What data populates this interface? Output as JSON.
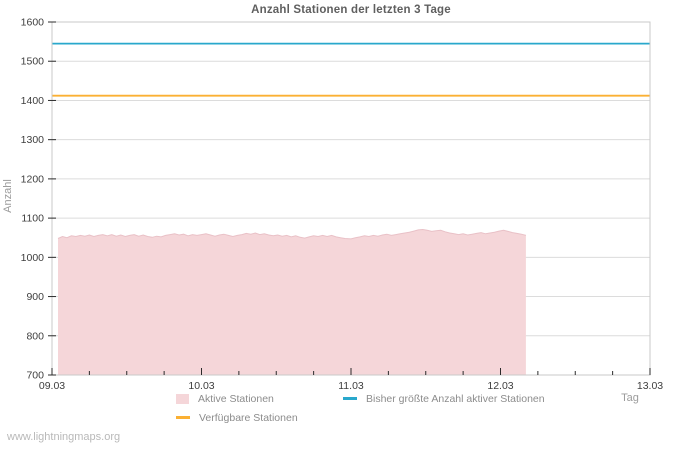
{
  "watermark": "www.lightningmaps.org",
  "chart_data": {
    "type": "area",
    "title": "Anzahl Stationen der letzten 3 Tage",
    "xlabel": "Tag",
    "ylabel": "Anzahl",
    "xlim": [
      0,
      4
    ],
    "ylim": [
      700,
      1600
    ],
    "grid": "horizontal",
    "legend_position": "bottom",
    "x_tick_labels": [
      "09.03",
      "10.03",
      "11.03",
      "12.03",
      "13.03"
    ],
    "x_tick_positions": [
      0,
      1,
      2,
      3,
      4
    ],
    "x_minor_tick_step": 0.25,
    "y_ticks": [
      700,
      800,
      900,
      1000,
      1100,
      1200,
      1300,
      1400,
      1500,
      1600
    ],
    "colors": {
      "grid": "#dcdcdc",
      "border": "#c9c9c9",
      "tick": "#2b2b2b",
      "tick_label": "#3e3e3e",
      "area_fill": "#f5d6d9",
      "area_edge": "#e9c1c7",
      "max_line": "#29a8cc",
      "available_line": "#fbb033"
    },
    "series": [
      {
        "name": "Aktive Stationen",
        "type": "area",
        "color": "#f5d6d9",
        "edge_color": "#e9c1c7",
        "points": [
          [
            0.04,
            1048
          ],
          [
            0.07,
            1053
          ],
          [
            0.1,
            1050
          ],
          [
            0.13,
            1055
          ],
          [
            0.16,
            1053
          ],
          [
            0.19,
            1056
          ],
          [
            0.22,
            1054
          ],
          [
            0.25,
            1057
          ],
          [
            0.28,
            1053
          ],
          [
            0.31,
            1056
          ],
          [
            0.34,
            1058
          ],
          [
            0.37,
            1055
          ],
          [
            0.4,
            1058
          ],
          [
            0.43,
            1054
          ],
          [
            0.46,
            1057
          ],
          [
            0.49,
            1053
          ],
          [
            0.52,
            1056
          ],
          [
            0.55,
            1058
          ],
          [
            0.58,
            1054
          ],
          [
            0.61,
            1057
          ],
          [
            0.64,
            1053
          ],
          [
            0.67,
            1051
          ],
          [
            0.7,
            1054
          ],
          [
            0.73,
            1052
          ],
          [
            0.76,
            1056
          ],
          [
            0.79,
            1058
          ],
          [
            0.82,
            1060
          ],
          [
            0.85,
            1057
          ],
          [
            0.88,
            1059
          ],
          [
            0.91,
            1055
          ],
          [
            0.94,
            1058
          ],
          [
            0.97,
            1056
          ],
          [
            1.0,
            1058
          ],
          [
            1.03,
            1060
          ],
          [
            1.06,
            1057
          ],
          [
            1.09,
            1054
          ],
          [
            1.12,
            1057
          ],
          [
            1.15,
            1059
          ],
          [
            1.18,
            1056
          ],
          [
            1.21,
            1053
          ],
          [
            1.24,
            1056
          ],
          [
            1.27,
            1058
          ],
          [
            1.3,
            1061
          ],
          [
            1.33,
            1059
          ],
          [
            1.36,
            1062
          ],
          [
            1.39,
            1058
          ],
          [
            1.42,
            1060
          ],
          [
            1.45,
            1057
          ],
          [
            1.48,
            1055
          ],
          [
            1.51,
            1057
          ],
          [
            1.54,
            1054
          ],
          [
            1.57,
            1056
          ],
          [
            1.6,
            1052
          ],
          [
            1.63,
            1055
          ],
          [
            1.66,
            1051
          ],
          [
            1.69,
            1049
          ],
          [
            1.72,
            1052
          ],
          [
            1.75,
            1055
          ],
          [
            1.78,
            1053
          ],
          [
            1.81,
            1056
          ],
          [
            1.84,
            1053
          ],
          [
            1.87,
            1056
          ],
          [
            1.9,
            1052
          ],
          [
            1.93,
            1050
          ],
          [
            1.96,
            1048
          ],
          [
            2.0,
            1047
          ],
          [
            2.03,
            1050
          ],
          [
            2.06,
            1052
          ],
          [
            2.09,
            1055
          ],
          [
            2.12,
            1053
          ],
          [
            2.15,
            1056
          ],
          [
            2.18,
            1054
          ],
          [
            2.21,
            1057
          ],
          [
            2.24,
            1059
          ],
          [
            2.27,
            1056
          ],
          [
            2.3,
            1058
          ],
          [
            2.33,
            1060
          ],
          [
            2.36,
            1062
          ],
          [
            2.39,
            1064
          ],
          [
            2.42,
            1067
          ],
          [
            2.45,
            1070
          ],
          [
            2.48,
            1071
          ],
          [
            2.51,
            1069
          ],
          [
            2.54,
            1066
          ],
          [
            2.57,
            1068
          ],
          [
            2.6,
            1069
          ],
          [
            2.63,
            1065
          ],
          [
            2.66,
            1062
          ],
          [
            2.69,
            1060
          ],
          [
            2.72,
            1058
          ],
          [
            2.75,
            1060
          ],
          [
            2.78,
            1057
          ],
          [
            2.81,
            1059
          ],
          [
            2.84,
            1061
          ],
          [
            2.87,
            1063
          ],
          [
            2.9,
            1060
          ],
          [
            2.93,
            1062
          ],
          [
            2.96,
            1064
          ],
          [
            2.99,
            1067
          ],
          [
            3.02,
            1069
          ],
          [
            3.05,
            1066
          ],
          [
            3.08,
            1063
          ],
          [
            3.11,
            1061
          ],
          [
            3.14,
            1059
          ],
          [
            3.17,
            1056
          ]
        ]
      },
      {
        "name": "Bisher größte Anzahl aktiver Stationen",
        "type": "line",
        "color": "#29a8cc",
        "value": 1545,
        "points": [
          [
            0,
            1545
          ],
          [
            4,
            1545
          ]
        ]
      },
      {
        "name": "Verfügbare Stationen",
        "type": "line",
        "color": "#fbb033",
        "value": 1412,
        "points": [
          [
            0,
            1412
          ],
          [
            4,
            1412
          ]
        ]
      }
    ]
  }
}
